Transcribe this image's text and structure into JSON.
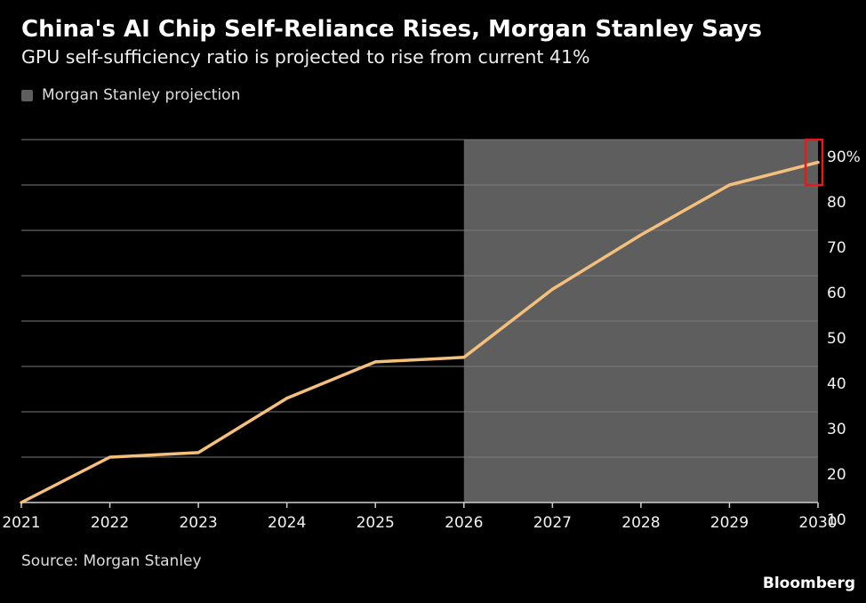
{
  "header": {
    "title": "China's AI Chip Self-Reliance Rises, Morgan Stanley Says",
    "subtitle": "GPU self-sufficiency ratio is projected to rise from current 41%"
  },
  "legend": {
    "label": "Morgan Stanley projection"
  },
  "footer": {
    "source": "Source: Morgan Stanley",
    "brand": "Bloomberg"
  },
  "colors": {
    "background": "#000000",
    "line": "#f5c07c",
    "projection_shade": "#5e5e5e",
    "grid": "#7a7a7a",
    "highlight": "#e31b1b"
  },
  "chart_data": {
    "type": "line",
    "title": "China's AI Chip Self-Reliance Rises, Morgan Stanley Says",
    "subtitle": "GPU self-sufficiency ratio is projected to rise from current 41%",
    "x": [
      2021,
      2022,
      2023,
      2024,
      2025,
      2026,
      2027,
      2028,
      2029,
      2030
    ],
    "x_ticks": [
      "2021",
      "2022",
      "2023",
      "2024",
      "2025",
      "2026",
      "2027",
      "2028",
      "2029",
      "2030"
    ],
    "series": [
      {
        "values": [
          10,
          20,
          21,
          33,
          41,
          42,
          57,
          69,
          80,
          85
        ]
      }
    ],
    "y_ticks": [
      "10",
      "20",
      "30",
      "40",
      "50",
      "60",
      "70",
      "80",
      "90%"
    ],
    "ylim": [
      10,
      90
    ],
    "xlim": [
      2021,
      2030
    ],
    "projection_range": [
      2026,
      2030
    ],
    "legend": [
      "Morgan Stanley projection"
    ],
    "legend_position": "top-left",
    "y_axis_side": "right",
    "grid": "horizontal",
    "highlight": {
      "x": 2030,
      "y_range": [
        80,
        90
      ]
    },
    "source": "Source: Morgan Stanley"
  }
}
